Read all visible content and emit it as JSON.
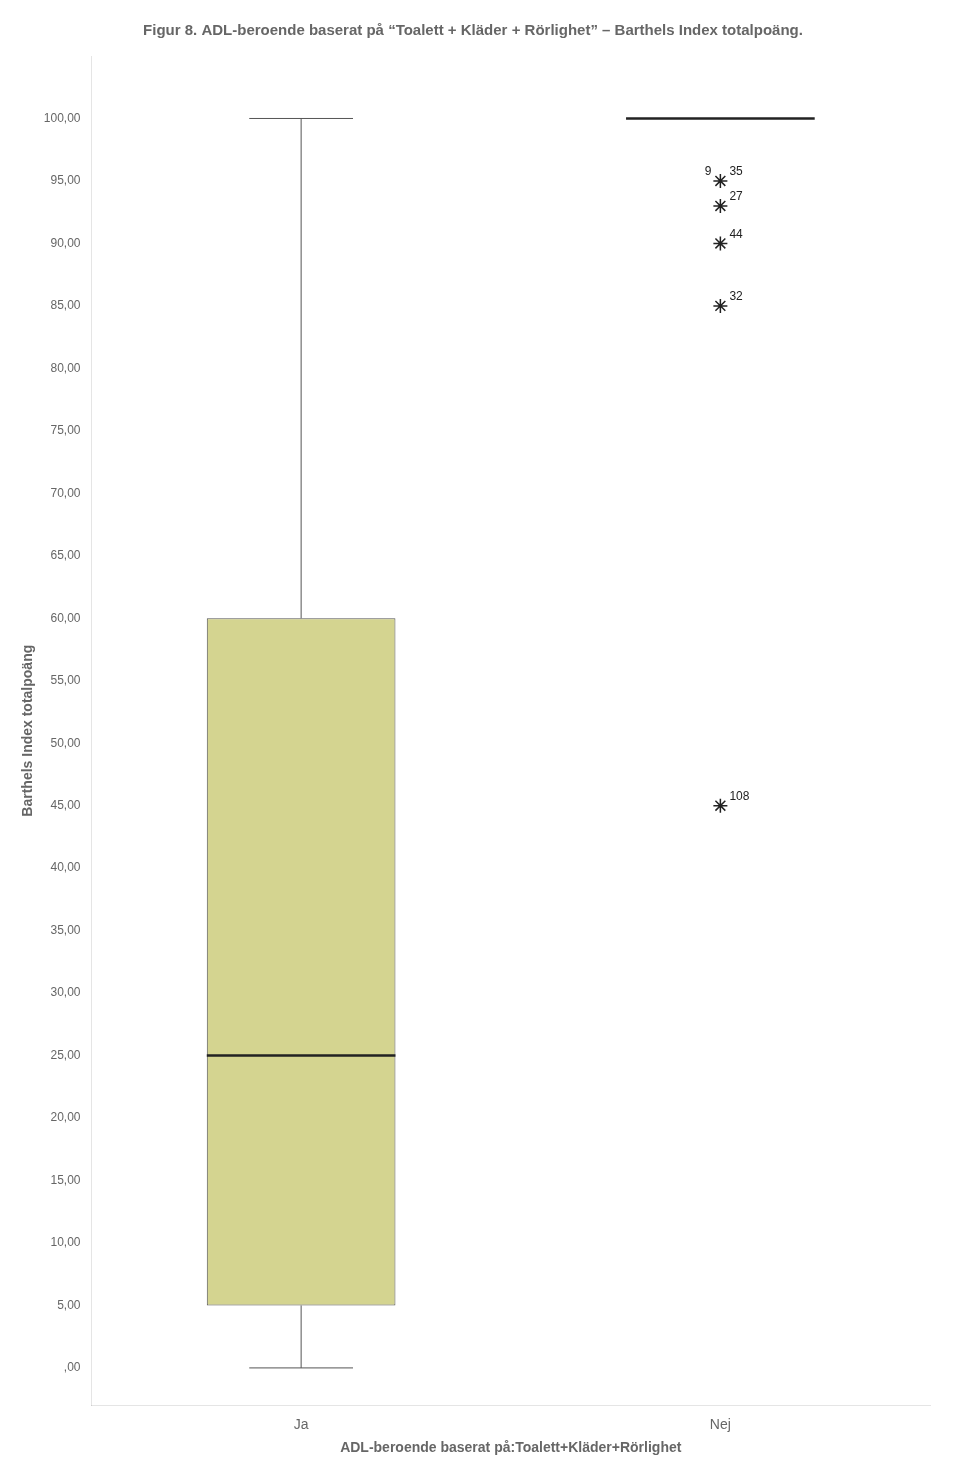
{
  "chart_data": {
    "type": "box",
    "title": "Figur 8. ADL-beroende baserat på “Toalett + Kläder + Rörlighet” – Barthels Index totalpoäng.",
    "categories": [
      "Ja",
      "Nej"
    ],
    "boxes": [
      {
        "q1": 5.0,
        "median": 25.0,
        "q3": 60.0,
        "whisker_low": 0.0,
        "whisker_high": 100.0
      },
      {
        "whisker_high": 100.0
      }
    ],
    "outliers": [
      {
        "category": "Nej",
        "values": [
          95.0,
          93.0,
          90.0,
          85.0,
          45.0
        ],
        "labels": [
          [
            "9",
            "35"
          ],
          [
            "27"
          ],
          [
            "44"
          ],
          [
            "32"
          ],
          [
            "108"
          ]
        ]
      }
    ],
    "color": "#d4d490",
    "marker": "star",
    "xlabel": "ADL-beroende baserat på:Toalett+Kläder+Rörlighet",
    "ylabel": "Barthels Index totalpoäng",
    "ylim": [
      -3,
      105
    ],
    "yticks": [
      {
        "value": 0,
        "label": ",00"
      },
      {
        "value": 5,
        "label": "5,00"
      },
      {
        "value": 10,
        "label": "10,00"
      },
      {
        "value": 15,
        "label": "15,00"
      },
      {
        "value": 20,
        "label": "20,00"
      },
      {
        "value": 25,
        "label": "25,00"
      },
      {
        "value": 30,
        "label": "30,00"
      },
      {
        "value": 35,
        "label": "35,00"
      },
      {
        "value": 40,
        "label": "40,00"
      },
      {
        "value": 45,
        "label": "45,00"
      },
      {
        "value": 50,
        "label": "50,00"
      },
      {
        "value": 55,
        "label": "55,00"
      },
      {
        "value": 60,
        "label": "60,00"
      },
      {
        "value": 65,
        "label": "65,00"
      },
      {
        "value": 70,
        "label": "70,00"
      },
      {
        "value": 75,
        "label": "75,00"
      },
      {
        "value": 80,
        "label": "80,00"
      },
      {
        "value": 85,
        "label": "85,00"
      },
      {
        "value": 90,
        "label": "90,00"
      },
      {
        "value": 95,
        "label": "95,00"
      },
      {
        "value": 100,
        "label": "100,00"
      }
    ],
    "grid": false
  }
}
